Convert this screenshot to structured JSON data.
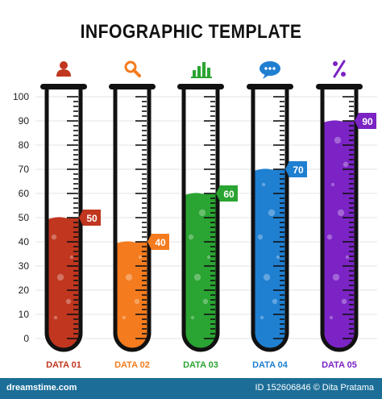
{
  "title": "INFOGRAPHIC TEMPLATE",
  "chart_data": {
    "type": "bar",
    "style": "test-tube",
    "title": "INFOGRAPHIC TEMPLATE",
    "categories": [
      "DATA 01",
      "DATA 02",
      "DATA 03",
      "DATA 04",
      "DATA 05"
    ],
    "values": [
      50,
      40,
      60,
      70,
      90
    ],
    "value_labels": [
      "50",
      "40",
      "60",
      "70",
      "90"
    ],
    "yticks": [
      "0",
      "10",
      "20",
      "30",
      "40",
      "50",
      "60",
      "70",
      "80",
      "90",
      "100"
    ],
    "ylim": [
      0,
      100
    ],
    "grid": true,
    "colors": [
      "#c0361f",
      "#f47b1e",
      "#2aa432",
      "#1f7fd1",
      "#7b23c4"
    ],
    "icons": [
      "person-icon",
      "magnifier-icon",
      "bar-chart-icon",
      "speech-bubble-icon",
      "percent-icon"
    ]
  },
  "footer": {
    "left": "dreamstime.com",
    "right": "ID 152606846 © Dita Pratama"
  }
}
